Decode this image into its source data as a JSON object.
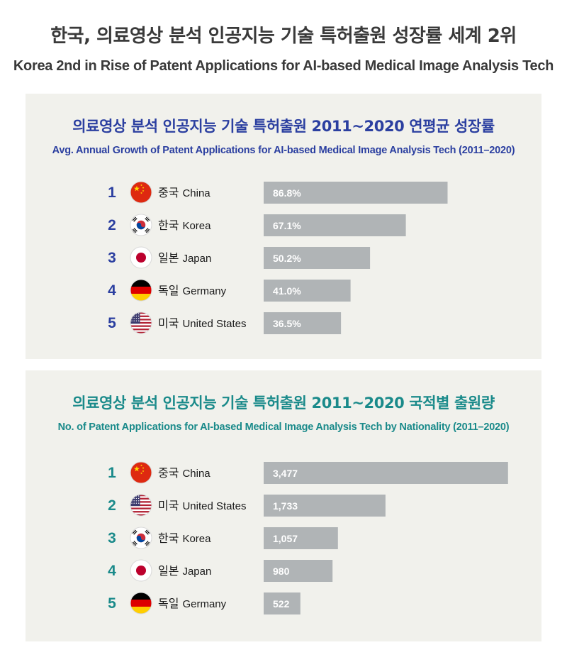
{
  "header": {
    "title": "한국, 의료영상 분석 인공지능 기술 특허출원 성장률 세계 2위",
    "subtitle": "Korea 2nd in Rise of Patent Applications for AI-based Medical Image Analysis Tech"
  },
  "colors": {
    "panel1_accent": "#2b3fa0",
    "panel2_accent": "#1a8a8a",
    "bar": "#b0b4b6",
    "panel_bg": "#f1f1ec"
  },
  "chart_data": [
    {
      "type": "bar",
      "title": "의료영상 분석 인공지능 기술 특허출원 2011~2020 연평균 성장률",
      "subtitle": "Avg. Annual Growth of Patent Applications for AI-based Medical Image Analysis Tech (2011–2020)",
      "ranks": [
        "1",
        "2",
        "3",
        "4",
        "5"
      ],
      "categories_ko": [
        "중국",
        "한국",
        "일본",
        "독일",
        "미국"
      ],
      "categories_en": [
        "China",
        "Korea",
        "Japan",
        "Germany",
        "United States"
      ],
      "flags": [
        "china-flag",
        "korea-flag",
        "japan-flag",
        "germany-flag",
        "usa-flag"
      ],
      "values": [
        86.8,
        67.1,
        50.2,
        41.0,
        36.5
      ],
      "value_labels": [
        "86.8%",
        "67.1%",
        "50.2%",
        "41.0%",
        "36.5%"
      ],
      "xlim": [
        0,
        100
      ]
    },
    {
      "type": "bar",
      "title": "의료영상 분석 인공지능 기술 특허출원 2011~2020 국적별 출원량",
      "subtitle": "No. of Patent Applications for AI-based Medical Image Analysis Tech by Nationality (2011–2020)",
      "ranks": [
        "1",
        "2",
        "3",
        "4",
        "5"
      ],
      "categories_ko": [
        "중국",
        "미국",
        "한국",
        "일본",
        "독일"
      ],
      "categories_en": [
        "China",
        "United States",
        "Korea",
        "Japan",
        "Germany"
      ],
      "flags": [
        "china-flag",
        "usa-flag",
        "korea-flag",
        "japan-flag",
        "germany-flag"
      ],
      "values": [
        3477,
        1733,
        1057,
        980,
        522
      ],
      "value_labels": [
        "3,477",
        "1,733",
        "1,057",
        "980",
        "522"
      ],
      "xlim": [
        0,
        3600
      ]
    }
  ]
}
